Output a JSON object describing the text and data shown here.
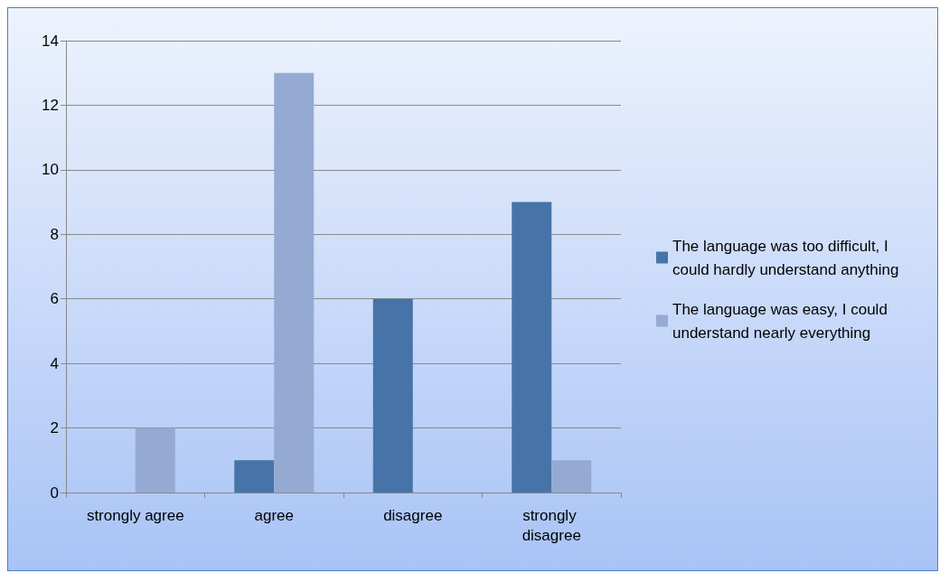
{
  "chart_data": {
    "type": "bar",
    "categories": [
      "strongly agree",
      "agree",
      "disagree",
      "strongly disagree"
    ],
    "series": [
      {
        "name": "The language was too difficult, I could hardly understand anything",
        "color": "#4674a8",
        "values": [
          0,
          1,
          6,
          9
        ]
      },
      {
        "name": "The language was easy, I could understand nearly everything",
        "color": "#95aad3",
        "values": [
          2,
          13,
          0,
          1
        ]
      }
    ],
    "ylim": [
      0,
      14
    ],
    "yticks": [
      0,
      2,
      4,
      6,
      8,
      10,
      12,
      14
    ],
    "grid": "y",
    "legend": "right"
  }
}
